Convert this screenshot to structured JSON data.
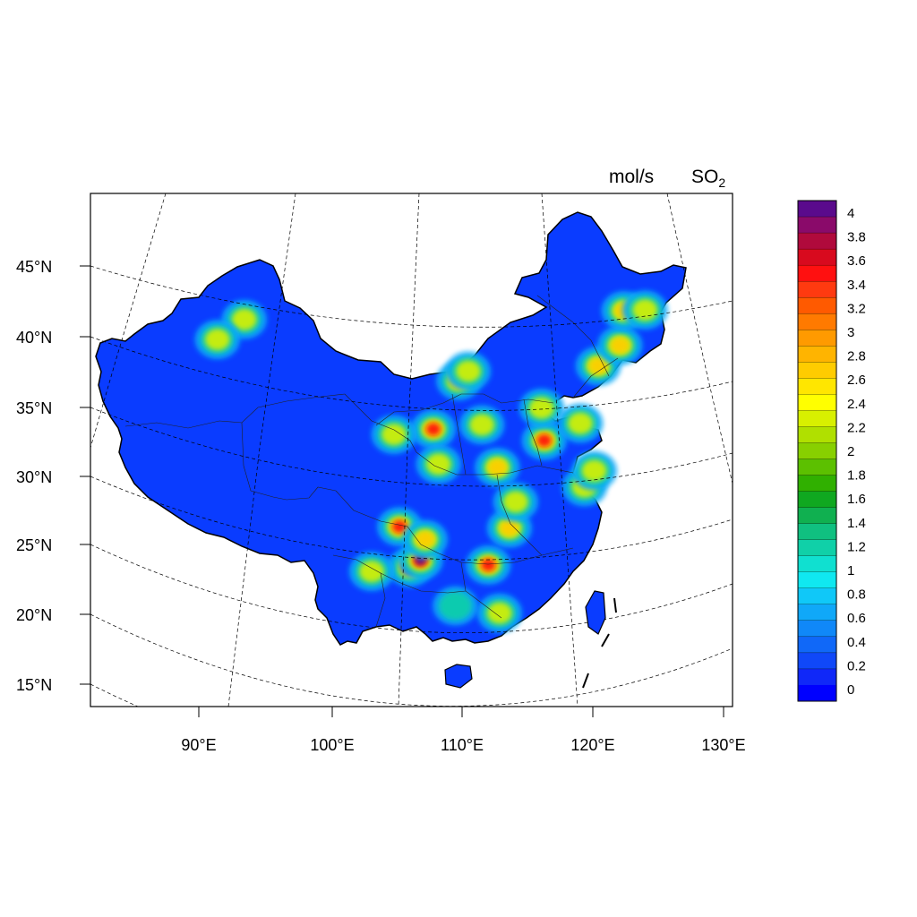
{
  "title": {
    "units": "mol/s",
    "species_base": "SO",
    "species_sub": "2"
  },
  "axes": {
    "lat_labels": [
      "45°N",
      "40°N",
      "35°N",
      "30°N",
      "25°N",
      "20°N",
      "15°N"
    ],
    "lon_labels": [
      "90°E",
      "100°E",
      "110°E",
      "120°E",
      "130°E"
    ]
  },
  "colorbar": {
    "labels": [
      "4",
      "3.8",
      "3.6",
      "3.4",
      "3.2",
      "3",
      "2.8",
      "2.6",
      "2.4",
      "2.2",
      "2",
      "1.8",
      "1.6",
      "1.4",
      "1.2",
      "1",
      "0.8",
      "0.6",
      "0.4",
      "0.2",
      "0"
    ],
    "colors": [
      "#5a0a8c",
      "#8a0a6a",
      "#b00a3c",
      "#d80a1e",
      "#ff1010",
      "#ff3a10",
      "#ff5a00",
      "#ff7a00",
      "#ff9a00",
      "#ffb400",
      "#ffcc00",
      "#ffe600",
      "#ffff00",
      "#d8f000",
      "#b0e000",
      "#88d000",
      "#5cc000",
      "#30b000",
      "#10a820",
      "#10b050",
      "#10c080",
      "#10d0a8",
      "#10e0d0",
      "#10e8f0",
      "#10c8f8",
      "#10a8f8",
      "#1088f8",
      "#1068f8",
      "#1048f8",
      "#1028f8"
    ],
    "bottom_color": "#0000ff"
  },
  "map": {
    "background_color": "#0a3cff",
    "outline_color": "#000000"
  },
  "hotspots": [
    {
      "lon": 106.4,
      "lat": 23.5,
      "level": 4.0
    },
    {
      "lon": 107.2,
      "lat": 24.0,
      "level": 4.0
    },
    {
      "lon": 105.5,
      "lat": 26.4,
      "level": 3.6
    },
    {
      "lon": 107.5,
      "lat": 25.5,
      "level": 3.0
    },
    {
      "lon": 107.8,
      "lat": 33.4,
      "level": 3.8
    },
    {
      "lon": 112.4,
      "lat": 23.8,
      "level": 3.6
    },
    {
      "lon": 113.9,
      "lat": 26.5,
      "level": 3.2
    },
    {
      "lon": 116.3,
      "lat": 32.9,
      "level": 3.6
    },
    {
      "lon": 112.8,
      "lat": 30.8,
      "level": 2.8
    },
    {
      "lon": 119.0,
      "lat": 34.3,
      "level": 2.4
    },
    {
      "lon": 116.0,
      "lat": 35.2,
      "level": 2.4
    },
    {
      "lon": 111.5,
      "lat": 33.8,
      "level": 2.2
    },
    {
      "lon": 109.6,
      "lat": 36.9,
      "level": 2.6
    },
    {
      "lon": 120.2,
      "lat": 38.5,
      "level": 3.0
    },
    {
      "lon": 121.8,
      "lat": 40.1,
      "level": 2.6
    },
    {
      "lon": 122.0,
      "lat": 42.6,
      "level": 3.0
    },
    {
      "lon": 123.6,
      "lat": 42.8,
      "level": 2.4
    },
    {
      "lon": 93.0,
      "lat": 41.6,
      "level": 2.2
    },
    {
      "lon": 91.0,
      "lat": 40.3,
      "level": 1.8
    },
    {
      "lon": 104.8,
      "lat": 33.0,
      "level": 2.0
    },
    {
      "lon": 108.3,
      "lat": 30.9,
      "level": 2.2
    },
    {
      "lon": 110.3,
      "lat": 37.6,
      "level": 2.0
    },
    {
      "lon": 113.4,
      "lat": 20.4,
      "level": 2.2
    },
    {
      "lon": 103.5,
      "lat": 23.2,
      "level": 2.0
    },
    {
      "lon": 110.0,
      "lat": 20.8,
      "level": 1.6
    },
    {
      "lon": 119.5,
      "lat": 29.8,
      "level": 1.8
    },
    {
      "lon": 120.2,
      "lat": 31.0,
      "level": 2.0
    },
    {
      "lon": 114.3,
      "lat": 28.4,
      "level": 2.0
    }
  ]
}
